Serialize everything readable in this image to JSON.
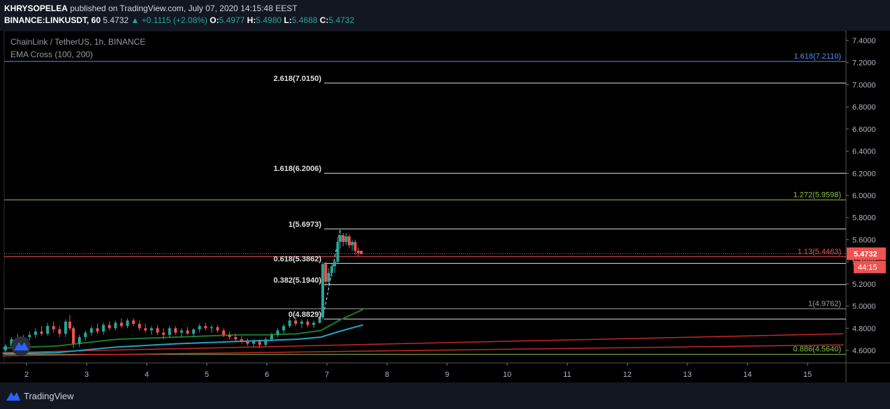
{
  "header": {
    "author": "KHRYSOPELEA",
    "published_text": "published on TradingView.com, July 07, 2020 14:15:48 EEST",
    "symbol": "BINANCE:LINKUSDT, 60",
    "last": "5.4732",
    "change_arrow": "▲",
    "change": "+0.1115 (+2.08%)",
    "o_label": "O:",
    "o": "5.4977",
    "h_label": "H:",
    "h": "5.4980",
    "l_label": "L:",
    "l": "5.4688",
    "c_label": "C:",
    "c": "5.4732"
  },
  "legend": {
    "pair": "ChainLink / TetherUS, 1h, BINANCE",
    "indicator": "EMA Cross (100, 200)"
  },
  "footer": {
    "brand": "TradingView"
  },
  "colors": {
    "up": "#26a69a",
    "down": "#ef5350",
    "background": "#000000",
    "ema_fast": "#1fa6c4",
    "ema_slow": "#1b7a2c",
    "trend": "#c62828"
  },
  "chart_data": {
    "type": "candlestick",
    "ylim": [
      4.5,
      7.5
    ],
    "y_ticks": [
      "4.6000",
      "4.8000",
      "5.0000",
      "5.2000",
      "5.4000",
      "5.6000",
      "5.8000",
      "6.0000",
      "6.2000",
      "6.4000",
      "6.6000",
      "6.8000",
      "7.0000",
      "7.2000",
      "7.4000"
    ],
    "x_ticks": [
      "2",
      "3",
      "4",
      "5",
      "6",
      "7",
      "8",
      "9",
      "10",
      "11",
      "12",
      "13",
      "14",
      "15"
    ],
    "last_price": {
      "label": "5.4732",
      "value": 5.4732,
      "countdown": "44:15"
    },
    "fib_levels": [
      {
        "label": "2.618(7.0150)",
        "value": 7.015,
        "x_from": 7.0
      },
      {
        "label": "1.618(6.2006)",
        "value": 6.2006,
        "x_from": 7.0
      },
      {
        "label": "1(5.6973)",
        "value": 5.6973,
        "x_from": 7.0
      },
      {
        "label": "0.618(5.3862)",
        "value": 5.3862,
        "x_from": 7.0
      },
      {
        "label": "0.382(5.1940)",
        "value": 5.194,
        "x_from": 7.0
      },
      {
        "label": "0(4.8829)",
        "value": 4.8829,
        "x_from": 7.0
      }
    ],
    "ext_levels": [
      {
        "label": "1.618(7.2110)",
        "value": 7.211,
        "color": "#5b8def"
      },
      {
        "label": "1.272(5.9598)",
        "value": 5.9598,
        "color": "#8bc34a"
      },
      {
        "label": "1.13(5.4463)",
        "value": 5.4463,
        "color": "#ef5350"
      },
      {
        "label": "1(4.9762)",
        "value": 4.9762,
        "color": "#9e9e9e"
      },
      {
        "label": "0.886(4.5640)",
        "value": 4.564,
        "color": "#8bc34a"
      }
    ],
    "trendlines": [
      {
        "x": [
          1.6,
          15.6
        ],
        "y": [
          4.58,
          4.75
        ]
      },
      {
        "x": [
          1.6,
          15.6
        ],
        "y": [
          4.55,
          4.65
        ]
      }
    ],
    "ema_fast": {
      "x": [
        1.6,
        2.5,
        3.5,
        4.5,
        5.5,
        6.0,
        6.5,
        6.9,
        7.2,
        7.6
      ],
      "y": [
        4.57,
        4.58,
        4.63,
        4.66,
        4.68,
        4.69,
        4.7,
        4.72,
        4.77,
        4.83
      ]
    },
    "ema_slow": {
      "x": [
        1.6,
        2.5,
        3.5,
        4.5,
        5.5,
        6.0,
        6.5,
        6.9,
        7.2,
        7.6
      ],
      "y": [
        4.62,
        4.64,
        4.7,
        4.72,
        4.74,
        4.74,
        4.75,
        4.78,
        4.87,
        4.97
      ]
    },
    "candles": [
      {
        "x": 1.65,
        "o": 4.6,
        "h": 4.66,
        "l": 4.57,
        "c": 4.64
      },
      {
        "x": 1.75,
        "o": 4.64,
        "h": 4.72,
        "l": 4.62,
        "c": 4.7
      },
      {
        "x": 1.85,
        "o": 4.7,
        "h": 4.75,
        "l": 4.66,
        "c": 4.68
      },
      {
        "x": 1.95,
        "o": 4.68,
        "h": 4.74,
        "l": 4.64,
        "c": 4.72
      },
      {
        "x": 2.05,
        "o": 4.72,
        "h": 4.77,
        "l": 4.69,
        "c": 4.74
      },
      {
        "x": 2.15,
        "o": 4.74,
        "h": 4.8,
        "l": 4.71,
        "c": 4.77
      },
      {
        "x": 2.25,
        "o": 4.77,
        "h": 4.82,
        "l": 4.73,
        "c": 4.75
      },
      {
        "x": 2.35,
        "o": 4.75,
        "h": 4.85,
        "l": 4.73,
        "c": 4.82
      },
      {
        "x": 2.45,
        "o": 4.82,
        "h": 4.86,
        "l": 4.76,
        "c": 4.79
      },
      {
        "x": 2.55,
        "o": 4.79,
        "h": 4.82,
        "l": 4.72,
        "c": 4.75
      },
      {
        "x": 2.65,
        "o": 4.75,
        "h": 4.88,
        "l": 4.72,
        "c": 4.86
      },
      {
        "x": 2.72,
        "o": 4.86,
        "h": 4.92,
        "l": 4.78,
        "c": 4.8
      },
      {
        "x": 2.78,
        "o": 4.8,
        "h": 4.82,
        "l": 4.62,
        "c": 4.66
      },
      {
        "x": 2.88,
        "o": 4.66,
        "h": 4.74,
        "l": 4.63,
        "c": 4.72
      },
      {
        "x": 2.98,
        "o": 4.72,
        "h": 4.78,
        "l": 4.69,
        "c": 4.76
      },
      {
        "x": 3.08,
        "o": 4.76,
        "h": 4.82,
        "l": 4.73,
        "c": 4.8
      },
      {
        "x": 3.18,
        "o": 4.8,
        "h": 4.84,
        "l": 4.75,
        "c": 4.77
      },
      {
        "x": 3.28,
        "o": 4.77,
        "h": 4.85,
        "l": 4.74,
        "c": 4.83
      },
      {
        "x": 3.38,
        "o": 4.83,
        "h": 4.86,
        "l": 4.78,
        "c": 4.8
      },
      {
        "x": 3.48,
        "o": 4.8,
        "h": 4.87,
        "l": 4.78,
        "c": 4.85
      },
      {
        "x": 3.58,
        "o": 4.85,
        "h": 4.89,
        "l": 4.8,
        "c": 4.82
      },
      {
        "x": 3.68,
        "o": 4.82,
        "h": 4.89,
        "l": 4.8,
        "c": 4.87
      },
      {
        "x": 3.78,
        "o": 4.87,
        "h": 4.89,
        "l": 4.82,
        "c": 4.84
      },
      {
        "x": 3.88,
        "o": 4.84,
        "h": 4.87,
        "l": 4.78,
        "c": 4.8
      },
      {
        "x": 3.98,
        "o": 4.8,
        "h": 4.84,
        "l": 4.76,
        "c": 4.78
      },
      {
        "x": 4.08,
        "o": 4.78,
        "h": 4.82,
        "l": 4.74,
        "c": 4.8
      },
      {
        "x": 4.18,
        "o": 4.8,
        "h": 4.83,
        "l": 4.74,
        "c": 4.76
      },
      {
        "x": 4.28,
        "o": 4.76,
        "h": 4.8,
        "l": 4.7,
        "c": 4.74
      },
      {
        "x": 4.38,
        "o": 4.74,
        "h": 4.82,
        "l": 4.72,
        "c": 4.8
      },
      {
        "x": 4.48,
        "o": 4.8,
        "h": 4.82,
        "l": 4.74,
        "c": 4.76
      },
      {
        "x": 4.58,
        "o": 4.76,
        "h": 4.8,
        "l": 4.72,
        "c": 4.78
      },
      {
        "x": 4.68,
        "o": 4.78,
        "h": 4.81,
        "l": 4.74,
        "c": 4.75
      },
      {
        "x": 4.78,
        "o": 4.75,
        "h": 4.8,
        "l": 4.72,
        "c": 4.79
      },
      {
        "x": 4.88,
        "o": 4.79,
        "h": 4.84,
        "l": 4.76,
        "c": 4.82
      },
      {
        "x": 4.98,
        "o": 4.82,
        "h": 4.85,
        "l": 4.78,
        "c": 4.8
      },
      {
        "x": 5.08,
        "o": 4.8,
        "h": 4.83,
        "l": 4.76,
        "c": 4.81
      },
      {
        "x": 5.18,
        "o": 4.81,
        "h": 4.83,
        "l": 4.76,
        "c": 4.78
      },
      {
        "x": 5.28,
        "o": 4.78,
        "h": 4.8,
        "l": 4.72,
        "c": 4.74
      },
      {
        "x": 5.38,
        "o": 4.74,
        "h": 4.77,
        "l": 4.7,
        "c": 4.72
      },
      {
        "x": 5.48,
        "o": 4.72,
        "h": 4.75,
        "l": 4.68,
        "c": 4.7
      },
      {
        "x": 5.58,
        "o": 4.7,
        "h": 4.73,
        "l": 4.66,
        "c": 4.68
      },
      {
        "x": 5.68,
        "o": 4.68,
        "h": 4.71,
        "l": 4.64,
        "c": 4.66
      },
      {
        "x": 5.78,
        "o": 4.66,
        "h": 4.7,
        "l": 4.63,
        "c": 4.68
      },
      {
        "x": 5.88,
        "o": 4.68,
        "h": 4.7,
        "l": 4.62,
        "c": 4.65
      },
      {
        "x": 5.98,
        "o": 4.65,
        "h": 4.72,
        "l": 4.63,
        "c": 4.7
      },
      {
        "x": 6.08,
        "o": 4.7,
        "h": 4.76,
        "l": 4.68,
        "c": 4.74
      },
      {
        "x": 6.18,
        "o": 4.74,
        "h": 4.8,
        "l": 4.72,
        "c": 4.78
      },
      {
        "x": 6.28,
        "o": 4.78,
        "h": 4.84,
        "l": 4.75,
        "c": 4.82
      },
      {
        "x": 6.38,
        "o": 4.82,
        "h": 4.9,
        "l": 4.8,
        "c": 4.87
      },
      {
        "x": 6.48,
        "o": 4.87,
        "h": 4.9,
        "l": 4.82,
        "c": 4.84
      },
      {
        "x": 6.58,
        "o": 4.84,
        "h": 4.88,
        "l": 4.8,
        "c": 4.86
      },
      {
        "x": 6.68,
        "o": 4.86,
        "h": 4.88,
        "l": 4.81,
        "c": 4.83
      },
      {
        "x": 6.78,
        "o": 4.83,
        "h": 4.87,
        "l": 4.8,
        "c": 4.85
      },
      {
        "x": 6.88,
        "o": 4.85,
        "h": 4.91,
        "l": 4.84,
        "c": 4.9
      },
      {
        "x": 6.93,
        "o": 4.9,
        "h": 5.4,
        "l": 4.88,
        "c": 5.38
      },
      {
        "x": 6.98,
        "o": 5.38,
        "h": 5.4,
        "l": 5.18,
        "c": 5.22
      },
      {
        "x": 7.03,
        "o": 5.22,
        "h": 5.34,
        "l": 5.18,
        "c": 5.3
      },
      {
        "x": 7.08,
        "o": 5.3,
        "h": 5.38,
        "l": 5.26,
        "c": 5.36
      },
      {
        "x": 7.13,
        "o": 5.36,
        "h": 5.42,
        "l": 5.3,
        "c": 5.4
      },
      {
        "x": 7.18,
        "o": 5.4,
        "h": 5.62,
        "l": 5.38,
        "c": 5.58
      },
      {
        "x": 7.22,
        "o": 5.58,
        "h": 5.7,
        "l": 5.52,
        "c": 5.64
      },
      {
        "x": 7.27,
        "o": 5.64,
        "h": 5.66,
        "l": 5.54,
        "c": 5.58
      },
      {
        "x": 7.32,
        "o": 5.58,
        "h": 5.66,
        "l": 5.55,
        "c": 5.63
      },
      {
        "x": 7.37,
        "o": 5.63,
        "h": 5.65,
        "l": 5.52,
        "c": 5.55
      },
      {
        "x": 7.42,
        "o": 5.55,
        "h": 5.6,
        "l": 5.5,
        "c": 5.58
      },
      {
        "x": 7.47,
        "o": 5.58,
        "h": 5.6,
        "l": 5.46,
        "c": 5.5
      },
      {
        "x": 7.52,
        "o": 5.5,
        "h": 5.53,
        "l": 5.45,
        "c": 5.48
      },
      {
        "x": 7.57,
        "o": 5.5,
        "h": 5.5,
        "l": 5.47,
        "c": 5.47
      }
    ]
  }
}
